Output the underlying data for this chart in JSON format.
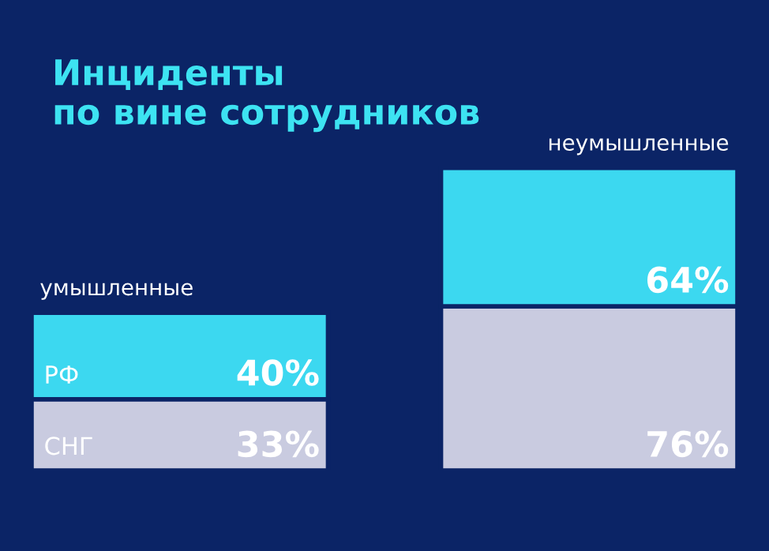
{
  "chart_data": {
    "type": "bar",
    "stacked": true,
    "title": "Инциденты\nпо вине сотрудников",
    "categories": [
      "умышленные",
      "неумышленные"
    ],
    "series": [
      {
        "name": "СНГ",
        "color": "#c9cbe0",
        "values": [
          33,
          76
        ],
        "value_labels": [
          "33%",
          "76%"
        ]
      },
      {
        "name": "РФ",
        "color": "#3cd8f0",
        "values": [
          40,
          64
        ],
        "value_labels": [
          "40%",
          "64%"
        ]
      }
    ],
    "legend": false,
    "grid": false,
    "tick_labels": false
  }
}
